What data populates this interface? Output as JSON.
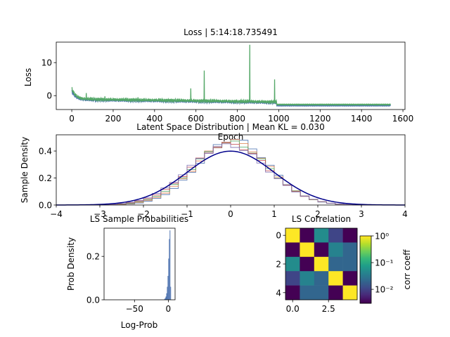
{
  "figure": {
    "background": "#ffffff",
    "accent_loss": "#55a868",
    "accent_loss2": "#4c72b0",
    "normal_curve": "#00008b"
  },
  "chart_data": [
    {
      "id": "loss",
      "type": "line",
      "title": "Loss | 5:14:18.735491",
      "xlabel": "Epoch",
      "ylabel": "Loss",
      "xlim": [
        -75,
        1610
      ],
      "ylim": [
        -4.2,
        16.2
      ],
      "xticks": [
        "0",
        "200",
        "400",
        "600",
        "800",
        "1000",
        "1200",
        "1400",
        "1600"
      ],
      "yticks": [
        "0",
        "10"
      ],
      "series": [
        {
          "color": "#55a868",
          "x_end": 1540,
          "start": 2.2,
          "settle": -1.0,
          "late_level": -2.7,
          "late_from": 990,
          "spikes": [
            [
              70,
              0.8
            ],
            [
              160,
              -0.2
            ],
            [
              320,
              -0.5
            ],
            [
              575,
              2.2
            ],
            [
              640,
              7.6
            ],
            [
              860,
              15.4
            ],
            [
              980,
              4.9
            ]
          ]
        },
        {
          "color": "#4c72b0",
          "x_end": 1540,
          "start": 1.4,
          "settle": -1.2,
          "late_level": -3.0,
          "late_from": 990,
          "spikes": []
        }
      ]
    },
    {
      "id": "latent",
      "type": "line",
      "title": "Latent Space Distribution | Mean KL = 0.030",
      "xlabel": "",
      "ylabel": "Sample Density",
      "xlim": [
        -4,
        4
      ],
      "ylim": [
        0,
        0.52
      ],
      "xticks": [
        "−4",
        "−3",
        "−2",
        "−1",
        "0",
        "1",
        "2",
        "3",
        "4"
      ],
      "yticks": [
        "0.0",
        "0.2",
        "0.4"
      ],
      "series": [
        {
          "kind": "normal_pdf",
          "mean": 0,
          "sd": 1,
          "color": "#00008b"
        },
        {
          "kind": "hist",
          "sd": 0.82,
          "color": "#4c72b0"
        },
        {
          "kind": "hist",
          "sd": 0.84,
          "color": "#dd8452"
        },
        {
          "kind": "hist",
          "sd": 0.86,
          "color": "#55a868"
        },
        {
          "kind": "hist",
          "sd": 0.88,
          "color": "#c44e52"
        },
        {
          "kind": "hist",
          "sd": 0.9,
          "color": "#8172b3"
        }
      ]
    },
    {
      "id": "probs",
      "type": "bar",
      "title": "LS Sample Probabilities",
      "xlabel": "Log-Prob",
      "ylabel": "Prob Density",
      "xlim": [
        -95,
        10
      ],
      "ylim": [
        0,
        0.33
      ],
      "xticks": [
        "−50",
        "0"
      ],
      "yticks": [
        "0.0",
        "0.2"
      ],
      "bars": [
        {
          "x": -6,
          "v": 0.004
        },
        {
          "x": -5,
          "v": 0.008
        },
        {
          "x": -4,
          "v": 0.015
        },
        {
          "x": -3,
          "v": 0.03
        },
        {
          "x": -2,
          "v": 0.06
        },
        {
          "x": -1,
          "v": 0.11
        },
        {
          "x": 0,
          "v": 0.19
        },
        {
          "x": 1,
          "v": 0.28
        },
        {
          "x": 2,
          "v": 0.32
        },
        {
          "x": 3,
          "v": 0.06
        }
      ],
      "color": "#4c72b0"
    },
    {
      "id": "corr",
      "type": "heatmap",
      "title": "LS Correlation",
      "xlabel": "",
      "ylabel": "",
      "colorbar_label": "corr coeff",
      "colorbar_ticks": [
        "10⁰",
        "10⁻¹",
        "10⁻²"
      ],
      "xticks": [
        "0.0",
        "2.5"
      ],
      "yticks": [
        "0",
        "2",
        "4"
      ],
      "scale": "log",
      "matrix": [
        [
          1.0,
          0.003,
          0.05,
          0.01,
          0.003
        ],
        [
          0.003,
          1.0,
          0.003,
          0.04,
          0.02
        ],
        [
          0.05,
          0.003,
          1.0,
          0.02,
          0.02
        ],
        [
          0.01,
          0.04,
          0.02,
          1.0,
          0.003
        ],
        [
          0.003,
          0.02,
          0.02,
          0.003,
          1.0
        ]
      ]
    }
  ]
}
